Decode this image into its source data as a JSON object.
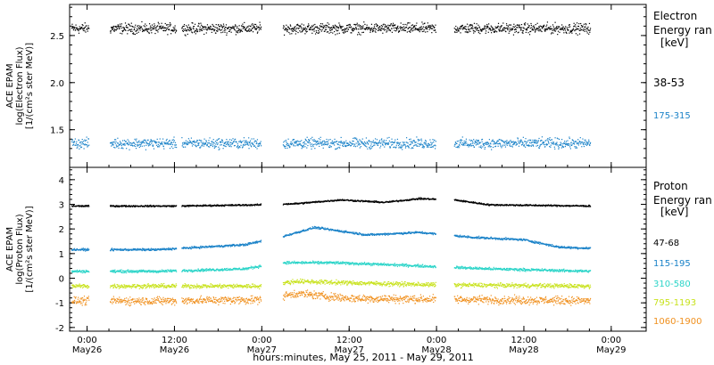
{
  "chart_data": [
    {
      "type": "scatter",
      "panel": "electron",
      "ylabel": [
        "ACE EPAM",
        "log(Electron Flux)",
        "[1/(cm²s ster MeV)]"
      ],
      "ylim": [
        1.1,
        2.83
      ],
      "yticks": [
        {
          "v": 1.5,
          "label": "1.5"
        },
        {
          "v": 2.0,
          "label": "2.0"
        },
        {
          "v": 2.5,
          "label": "2.5"
        }
      ],
      "legend_title": [
        "Electron",
        "Energy ran",
        "[keV]"
      ],
      "series": [
        {
          "name": "38-53",
          "color": "#000000",
          "mean": 2.58,
          "noise": 0.05
        },
        {
          "name": "175-315",
          "color": "#1a82c8",
          "mean": 1.36,
          "noise": 0.05
        }
      ]
    },
    {
      "type": "scatter",
      "panel": "proton",
      "ylabel": [
        "ACE EPAM",
        "log(Proton Flux)",
        "[1/(cm²s ster MeV)]"
      ],
      "ylim": [
        -2.15,
        4.5
      ],
      "yticks": [
        {
          "v": -2,
          "label": "-2"
        },
        {
          "v": -1,
          "label": "-1"
        },
        {
          "v": 0,
          "label": "0"
        },
        {
          "v": 1,
          "label": "1"
        },
        {
          "v": 2,
          "label": "2"
        },
        {
          "v": 3,
          "label": "3"
        },
        {
          "v": 4,
          "label": "4"
        }
      ],
      "legend_title": [
        "Proton",
        "Energy ran",
        "[keV]"
      ],
      "series": [
        {
          "name": "47-68",
          "color": "#000000",
          "base": 2.95,
          "noise": 0.03,
          "profile": [
            [
              26.5,
              0
            ],
            [
              27.0,
              0.05
            ],
            [
              27.2,
              0.1
            ],
            [
              27.45,
              0.25
            ],
            [
              27.7,
              0.15
            ],
            [
              27.9,
              0.3
            ],
            [
              28.1,
              0.25
            ],
            [
              28.3,
              0.05
            ],
            [
              28.9,
              0.0
            ]
          ]
        },
        {
          "name": "115-195",
          "color": "#1a82c8",
          "base": 1.18,
          "noise": 0.04,
          "profile": [
            [
              26.4,
              0
            ],
            [
              26.9,
              0.2
            ],
            [
              27.1,
              0.5
            ],
            [
              27.3,
              0.9
            ],
            [
              27.6,
              0.6
            ],
            [
              27.9,
              0.7
            ],
            [
              28.2,
              0.5
            ],
            [
              28.5,
              0.4
            ],
            [
              28.7,
              0.1
            ],
            [
              28.9,
              0.05
            ]
          ]
        },
        {
          "name": "310-580",
          "color": "#2ad4c8",
          "base": 0.3,
          "noise": 0.05,
          "profile": [
            [
              26.4,
              0
            ],
            [
              26.9,
              0.1
            ],
            [
              27.1,
              0.35
            ],
            [
              27.4,
              0.35
            ],
            [
              27.8,
              0.25
            ],
            [
              28.3,
              0.1
            ],
            [
              28.9,
              0.0
            ]
          ]
        },
        {
          "name": "795-1193",
          "color": "#c8e21c",
          "base": -0.3,
          "noise": 0.08,
          "profile": [
            [
              26.4,
              0
            ],
            [
              27.0,
              0.0
            ],
            [
              27.2,
              0.2
            ],
            [
              27.4,
              0.15
            ],
            [
              28.0,
              0.05
            ],
            [
              28.9,
              0.0
            ]
          ]
        },
        {
          "name": "1060-1900",
          "color": "#f0901e",
          "base": -0.9,
          "noise": 0.15,
          "profile": [
            [
              26.4,
              0
            ],
            [
              27.0,
              0.05
            ],
            [
              27.2,
              0.3
            ],
            [
              27.5,
              0.1
            ],
            [
              28.9,
              0.0
            ]
          ]
        }
      ]
    }
  ],
  "x_axis": {
    "xlim": [
      25.9,
      29.2
    ],
    "xlabel": "hours:minutes, May 25, 2011 - May 29, 2011",
    "ticks": [
      {
        "v": 26.0,
        "time": "0:00",
        "date": "May26"
      },
      {
        "v": 26.5,
        "time": "12:00",
        "date": "May26"
      },
      {
        "v": 27.0,
        "time": "0:00",
        "date": "May27"
      },
      {
        "v": 27.5,
        "time": "12:00",
        "date": "May27"
      },
      {
        "v": 28.0,
        "time": "0:00",
        "date": "May28"
      },
      {
        "v": 28.5,
        "time": "12:00",
        "date": "May28"
      },
      {
        "v": 29.0,
        "time": "0:00",
        "date": "May29"
      }
    ],
    "data_segments": [
      [
        25.91,
        26.01
      ],
      [
        26.13,
        26.51
      ],
      [
        26.54,
        26.995
      ],
      [
        27.12,
        27.995
      ],
      [
        28.1,
        28.88
      ]
    ]
  }
}
